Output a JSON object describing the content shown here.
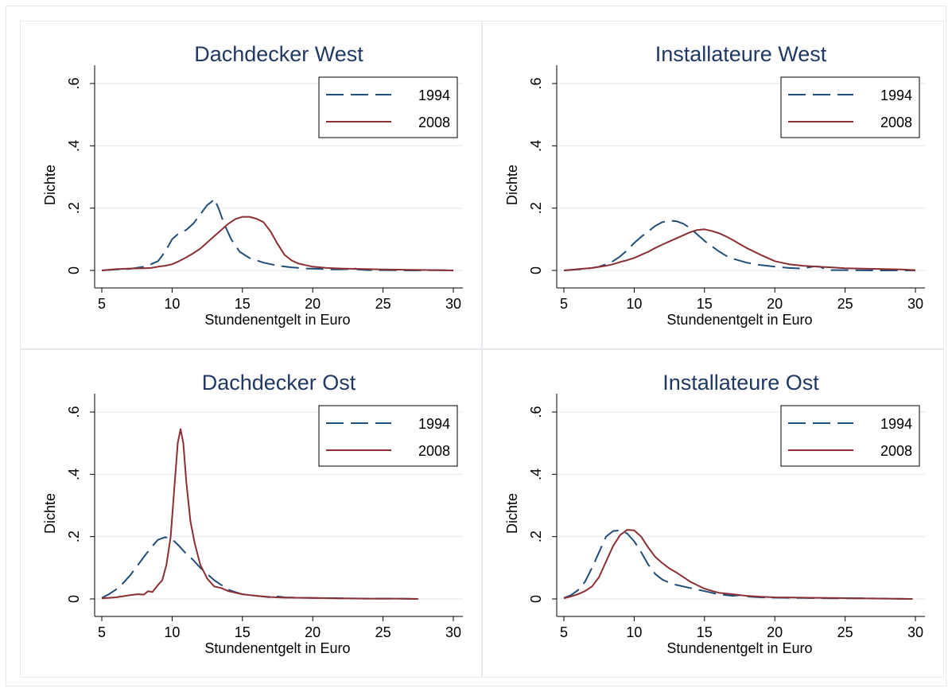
{
  "colors": {
    "series_1994": "#1f4e79",
    "series_2008": "#8b2f33",
    "title": "#1f3864",
    "axis": "#000000",
    "grid": "#e8eff2",
    "panel_border": "#e6eaee"
  },
  "chart_data": [
    {
      "type": "line",
      "title": "Dachdecker West",
      "xlabel": "Stundenentgelt in Euro",
      "ylabel": "Dichte",
      "xlim": [
        5,
        30
      ],
      "ylim": [
        0,
        0.6
      ],
      "xticks": [
        "5",
        "10",
        "15",
        "20",
        "25",
        "30"
      ],
      "yticks": [
        "0",
        ".2",
        ".4",
        ".6"
      ],
      "grid": true,
      "legend_position": "top-right",
      "legend": [
        "1994",
        "2008"
      ],
      "series": [
        {
          "name": "1994",
          "style": "dashed",
          "x": [
            5,
            6,
            7,
            8,
            8.5,
            9,
            9.5,
            10,
            10.5,
            11,
            11.5,
            12,
            12.5,
            12.8,
            13,
            13.3,
            13.7,
            14.2,
            14.8,
            15.5,
            16.5,
            17.5,
            18.5,
            19.5,
            20.5,
            21.5,
            22.5,
            22.8,
            23.2,
            24,
            25,
            27,
            29,
            30
          ],
          "y": [
            0,
            0.003,
            0.005,
            0.012,
            0.02,
            0.03,
            0.06,
            0.1,
            0.12,
            0.13,
            0.15,
            0.18,
            0.21,
            0.22,
            0.23,
            0.2,
            0.15,
            0.1,
            0.06,
            0.04,
            0.025,
            0.015,
            0.01,
            0.006,
            0.005,
            0.003,
            0.004,
            0.01,
            0.003,
            0.001,
            0.001,
            0,
            0.001,
            0
          ]
        },
        {
          "name": "2008",
          "style": "solid",
          "x": [
            5,
            6,
            7,
            8,
            8.5,
            9,
            9.5,
            10,
            10.5,
            11,
            11.5,
            12,
            12.5,
            13,
            13.5,
            14,
            14.5,
            15,
            15.5,
            16,
            16.5,
            17,
            17.5,
            18,
            18.5,
            19,
            20,
            21,
            22,
            23,
            24,
            25,
            27,
            29,
            30
          ],
          "y": [
            0,
            0.004,
            0.006,
            0.007,
            0.008,
            0.012,
            0.015,
            0.02,
            0.03,
            0.042,
            0.055,
            0.07,
            0.09,
            0.11,
            0.13,
            0.15,
            0.165,
            0.172,
            0.172,
            0.166,
            0.155,
            0.125,
            0.085,
            0.05,
            0.032,
            0.022,
            0.012,
            0.008,
            0.006,
            0.005,
            0.004,
            0.003,
            0.002,
            0.001,
            0
          ]
        }
      ]
    },
    {
      "type": "line",
      "title": "Installateure West",
      "xlabel": "Stundenentgelt in Euro",
      "ylabel": "Dichte",
      "xlim": [
        5,
        30
      ],
      "ylim": [
        0,
        0.6
      ],
      "xticks": [
        "5",
        "10",
        "15",
        "20",
        "25",
        "30"
      ],
      "yticks": [
        "0",
        ".2",
        ".4",
        ".6"
      ],
      "grid": true,
      "legend_position": "top-right",
      "legend": [
        "1994",
        "2008"
      ],
      "series": [
        {
          "name": "1994",
          "style": "dashed",
          "x": [
            5,
            6,
            7,
            7.5,
            8,
            8.5,
            9,
            9.5,
            10,
            10.5,
            11,
            11.5,
            12,
            12.5,
            13,
            13.5,
            14,
            14.5,
            15,
            15.5,
            16,
            16.5,
            17,
            18,
            19,
            20,
            21,
            22,
            22.8,
            23.2,
            23.6,
            24,
            25,
            27,
            29,
            30
          ],
          "y": [
            0,
            0.003,
            0.008,
            0.012,
            0.02,
            0.03,
            0.045,
            0.065,
            0.088,
            0.108,
            0.125,
            0.143,
            0.155,
            0.16,
            0.158,
            0.15,
            0.135,
            0.115,
            0.095,
            0.078,
            0.062,
            0.048,
            0.038,
            0.025,
            0.017,
            0.012,
            0.008,
            0.006,
            0.013,
            0.012,
            0.004,
            0.001,
            0.001,
            0,
            0,
            0
          ]
        },
        {
          "name": "2008",
          "style": "solid",
          "x": [
            5,
            6,
            7,
            8,
            8.5,
            9,
            9.5,
            10,
            10.5,
            11,
            11.5,
            12,
            12.5,
            13,
            13.5,
            14,
            14.5,
            15,
            15.5,
            16,
            16.5,
            17,
            17.5,
            18,
            19,
            20,
            21,
            22,
            23,
            24,
            25,
            27,
            29,
            30
          ],
          "y": [
            0,
            0.004,
            0.008,
            0.015,
            0.02,
            0.027,
            0.033,
            0.04,
            0.05,
            0.06,
            0.072,
            0.083,
            0.093,
            0.103,
            0.113,
            0.123,
            0.13,
            0.132,
            0.127,
            0.12,
            0.11,
            0.098,
            0.085,
            0.072,
            0.05,
            0.03,
            0.02,
            0.015,
            0.012,
            0.01,
            0.007,
            0.005,
            0.003,
            0.001
          ]
        }
      ]
    },
    {
      "type": "line",
      "title": "Dachdecker Ost",
      "xlabel": "Stundenentgelt in Euro",
      "ylabel": "Dichte",
      "xlim": [
        5,
        30
      ],
      "ylim": [
        0,
        0.6
      ],
      "xticks": [
        "5",
        "10",
        "15",
        "20",
        "25",
        "30"
      ],
      "yticks": [
        "0",
        ".2",
        ".4",
        ".6"
      ],
      "grid": true,
      "legend_position": "top-right",
      "legend": [
        "1994",
        "2008"
      ],
      "series": [
        {
          "name": "1994",
          "style": "dashed",
          "x": [
            5,
            5.5,
            6,
            6.5,
            7,
            7.5,
            8,
            8.5,
            9,
            9.5,
            10,
            10.5,
            11,
            11.5,
            12,
            12.5,
            13,
            13.5,
            14,
            14.5,
            15,
            16,
            17,
            17.5,
            18,
            19,
            20,
            22,
            24,
            26,
            27.5
          ],
          "y": [
            0.003,
            0.015,
            0.03,
            0.05,
            0.075,
            0.105,
            0.135,
            0.165,
            0.19,
            0.198,
            0.192,
            0.17,
            0.145,
            0.125,
            0.1,
            0.08,
            0.06,
            0.045,
            0.03,
            0.022,
            0.015,
            0.01,
            0.005,
            0.008,
            0.005,
            0.004,
            0.003,
            0.002,
            0.001,
            0.001,
            0
          ]
        },
        {
          "name": "2008",
          "style": "solid",
          "x": [
            5,
            6,
            7,
            7.5,
            8,
            8.3,
            8.6,
            9,
            9.3,
            9.6,
            9.9,
            10.2,
            10.4,
            10.6,
            10.8,
            11,
            11.3,
            11.6,
            12,
            12.5,
            13,
            13.5,
            14,
            14.5,
            15,
            16,
            17,
            18,
            20,
            22,
            24,
            26,
            27.5
          ],
          "y": [
            0.002,
            0.005,
            0.012,
            0.015,
            0.014,
            0.025,
            0.022,
            0.045,
            0.06,
            0.11,
            0.2,
            0.38,
            0.5,
            0.545,
            0.5,
            0.38,
            0.25,
            0.18,
            0.11,
            0.065,
            0.04,
            0.035,
            0.025,
            0.02,
            0.015,
            0.01,
            0.006,
            0.004,
            0.003,
            0.002,
            0.001,
            0.001,
            0
          ]
        }
      ]
    },
    {
      "type": "line",
      "title": "Installateure Ost",
      "xlabel": "Stundenentgelt in Euro",
      "ylabel": "Dichte",
      "xlim": [
        5,
        30
      ],
      "ylim": [
        0,
        0.6
      ],
      "xticks": [
        "5",
        "10",
        "15",
        "20",
        "25",
        "30"
      ],
      "yticks": [
        "0",
        ".2",
        ".4",
        ".6"
      ],
      "grid": true,
      "legend_position": "top-right",
      "legend": [
        "1994",
        "2008"
      ],
      "series": [
        {
          "name": "1994",
          "style": "dashed",
          "x": [
            5,
            5.5,
            6,
            6.5,
            7,
            7.5,
            8,
            8.5,
            9,
            9.5,
            10,
            10.5,
            11,
            11.5,
            12,
            12.5,
            13,
            14,
            15,
            16,
            17,
            17.5,
            18,
            19,
            20,
            22,
            24,
            26,
            28,
            29.8
          ],
          "y": [
            0.003,
            0.012,
            0.028,
            0.055,
            0.1,
            0.15,
            0.2,
            0.218,
            0.22,
            0.21,
            0.185,
            0.15,
            0.11,
            0.08,
            0.062,
            0.052,
            0.045,
            0.035,
            0.025,
            0.015,
            0.01,
            0.012,
            0.008,
            0.005,
            0.004,
            0.003,
            0.002,
            0.002,
            0.001,
            0
          ]
        },
        {
          "name": "2008",
          "style": "solid",
          "x": [
            5,
            5.5,
            6,
            6.5,
            7,
            7.5,
            8,
            8.5,
            9,
            9.5,
            10,
            10.5,
            11,
            11.5,
            12,
            12.5,
            13,
            13.5,
            14,
            15,
            16,
            17,
            18,
            19,
            20,
            22,
            24,
            26,
            28,
            29.8
          ],
          "y": [
            0.002,
            0.008,
            0.015,
            0.025,
            0.04,
            0.07,
            0.12,
            0.17,
            0.205,
            0.222,
            0.22,
            0.2,
            0.165,
            0.135,
            0.115,
            0.098,
            0.085,
            0.07,
            0.055,
            0.033,
            0.02,
            0.015,
            0.01,
            0.007,
            0.005,
            0.004,
            0.003,
            0.002,
            0.001,
            0
          ]
        }
      ]
    }
  ]
}
